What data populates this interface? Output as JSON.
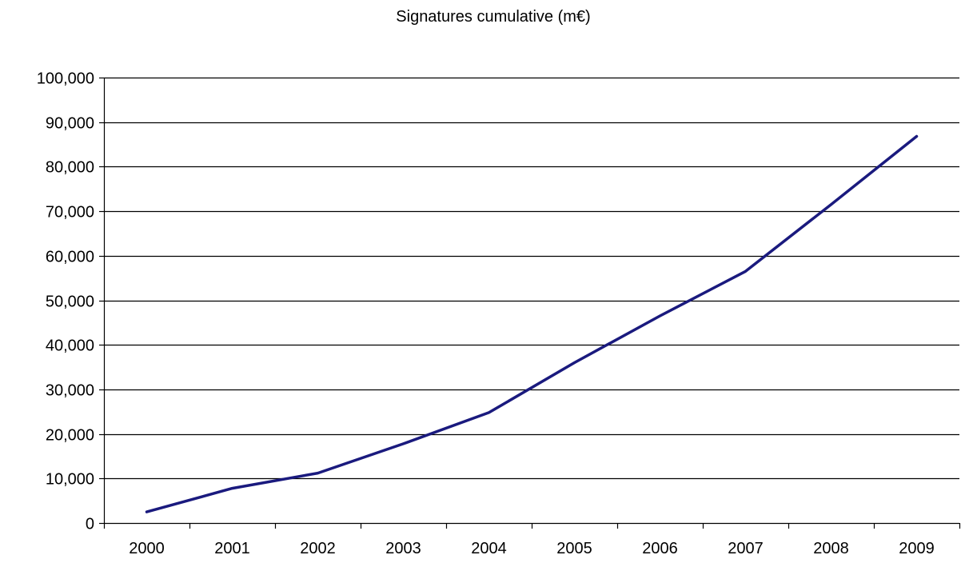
{
  "chart_data": {
    "type": "line",
    "title": "Signatures cumulative (m€)",
    "xlabel": "",
    "ylabel": "",
    "categories": [
      "2000",
      "2001",
      "2002",
      "2003",
      "2004",
      "2005",
      "2006",
      "2007",
      "2008",
      "2009"
    ],
    "series": [
      {
        "values": [
          2500,
          7800,
          11200,
          17800,
          24800,
          36000,
          46500,
          56500,
          71500,
          86800
        ]
      }
    ],
    "ylim": [
      0,
      100000
    ],
    "yticks": [
      0,
      10000,
      20000,
      30000,
      40000,
      50000,
      60000,
      70000,
      80000,
      90000,
      100000
    ],
    "ytick_labels": [
      "0",
      "10,000",
      "20,000",
      "30,000",
      "40,000",
      "50,000",
      "60,000",
      "70,000",
      "80,000",
      "90,000",
      "100,000"
    ],
    "grid": true,
    "legend": "none",
    "colors": {
      "line": "#1a1a7e",
      "grid": "#000000",
      "axis": "#000000"
    }
  }
}
